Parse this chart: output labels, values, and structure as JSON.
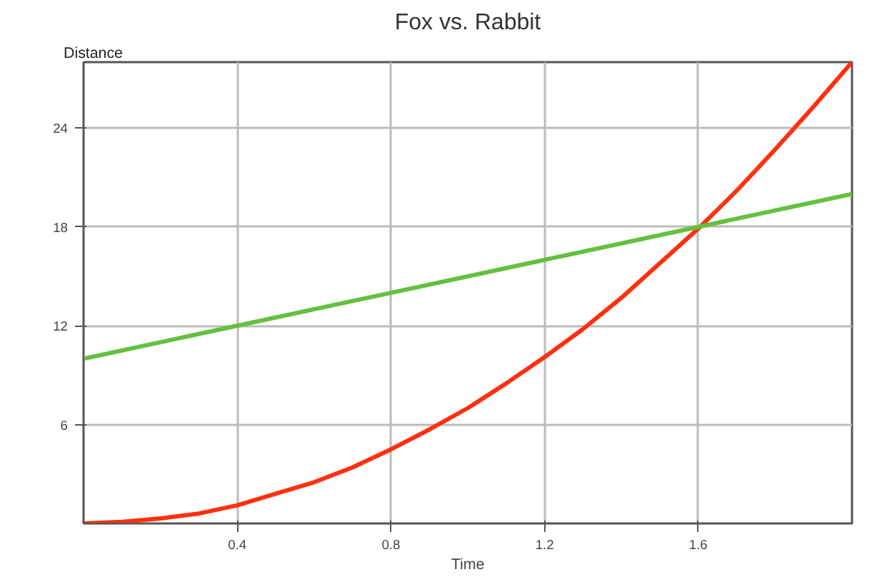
{
  "chart_data": {
    "type": "line",
    "title": "Fox vs. Rabbit",
    "xlabel": "Time",
    "ylabel": "Distance",
    "xlim": [
      0,
      2
    ],
    "ylim": [
      0,
      28
    ],
    "xticks": [
      0.4,
      0.8,
      1.2,
      1.6
    ],
    "yticks": [
      6,
      12,
      18,
      24
    ],
    "grid": true,
    "marker": "none",
    "line_style": "solid",
    "series": [
      {
        "color": "#ff3010",
        "x": [
          0,
          0.1,
          0.2,
          0.3,
          0.4,
          0.5,
          0.6,
          0.7,
          0.8,
          0.9,
          1.0,
          1.1,
          1.2,
          1.3,
          1.4,
          1.5,
          1.6,
          1.7,
          1.8,
          1.9,
          2.0
        ],
        "values": [
          0,
          0.1,
          0.3,
          0.6,
          1.1,
          1.8,
          2.5,
          3.4,
          4.5,
          5.7,
          7.0,
          8.5,
          10.1,
          11.8,
          13.7,
          15.8,
          17.9,
          20.2,
          22.7,
          25.3,
          28.0
        ]
      },
      {
        "color": "#66c040",
        "x": [
          0,
          2
        ],
        "values": [
          10,
          20
        ]
      }
    ]
  }
}
